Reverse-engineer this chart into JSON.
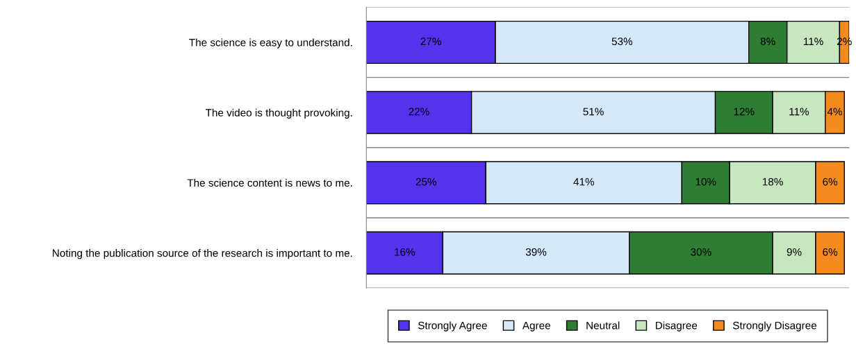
{
  "chart_data": {
    "type": "bar",
    "orientation": "horizontal",
    "stacked": true,
    "grid": "y",
    "legend": "bottom",
    "tick_labels": "y",
    "categories": [
      "The science is easy to understand.",
      "The video is thought provoking.",
      "The science content is news to me.",
      "Noting the publication source of the research is important to me."
    ],
    "series": [
      {
        "name": "Strongly Agree",
        "color": "#5533ee",
        "values": [
          27,
          22,
          25,
          16
        ],
        "value_labels": [
          "27%",
          "22%",
          "25%",
          "16%"
        ]
      },
      {
        "name": "Agree",
        "color": "#d4e8f8",
        "values": [
          53,
          51,
          41,
          39
        ],
        "value_labels": [
          "53%",
          "51%",
          "41%",
          "39%"
        ]
      },
      {
        "name": "Neutral",
        "color": "#2e7d32",
        "values": [
          8,
          12,
          10,
          30
        ],
        "value_labels": [
          "8%",
          "12%",
          "10%",
          "30%"
        ]
      },
      {
        "name": "Disagree",
        "color": "#c8e6c0",
        "values": [
          11,
          11,
          18,
          9
        ],
        "value_labels": [
          "11%",
          "11%",
          "18%",
          "9%"
        ]
      },
      {
        "name": "Strongly Disagree",
        "color": "#f58a1f",
        "values": [
          2,
          4,
          6,
          6
        ],
        "value_labels": [
          "2%",
          "4%",
          "6%",
          "6%"
        ]
      }
    ]
  }
}
